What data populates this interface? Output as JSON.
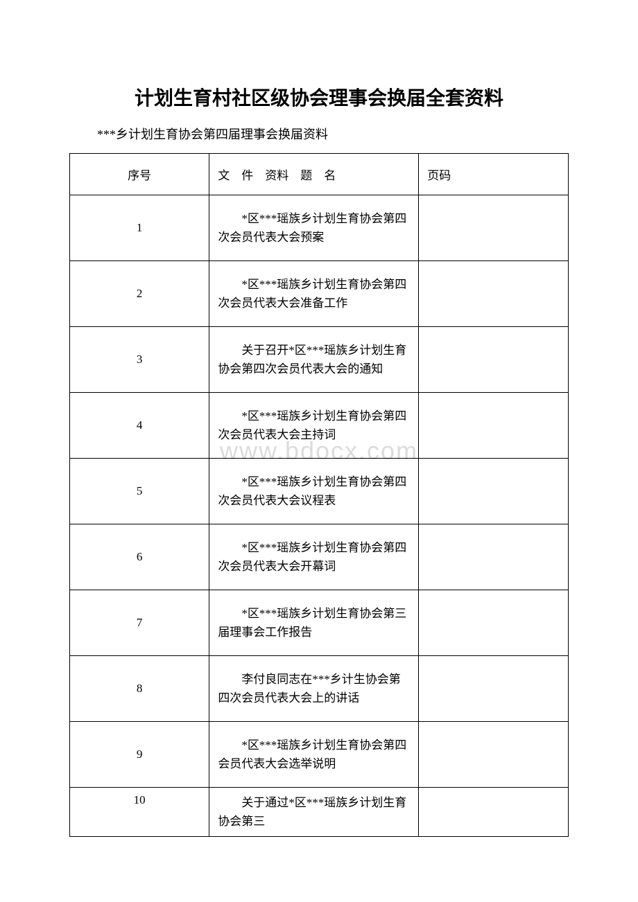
{
  "title": "计划生育村社区级协会理事会换届全套资料",
  "subtitle": "***乡计划生育协会第四届理事会换届资料",
  "watermark": "www.bdocx.com",
  "table": {
    "headers": {
      "num": "序号",
      "doc_title": "文　件　资料　题　名",
      "page": "页码"
    },
    "rows": [
      {
        "num": "1",
        "title": "*区***瑶族乡计划生育协会第四次会员代表大会预案",
        "page": ""
      },
      {
        "num": "2",
        "title": "*区***瑶族乡计划生育协会第四次会员代表大会准备工作",
        "page": ""
      },
      {
        "num": "3",
        "title": "关于召开*区***瑶族乡计划生育协会第四次会员代表大会的通知",
        "page": ""
      },
      {
        "num": "4",
        "title": "*区***瑶族乡计划生育协会第四次会员代表大会主持词",
        "page": ""
      },
      {
        "num": "5",
        "title": "*区***瑶族乡计划生育协会第四次会员代表大会议程表",
        "page": ""
      },
      {
        "num": "6",
        "title": "*区***瑶族乡计划生育协会第四次会员代表大会开幕词",
        "page": ""
      },
      {
        "num": "7",
        "title": "*区***瑶族乡计划生育协会第三届理事会工作报告",
        "page": ""
      },
      {
        "num": "8",
        "title": "李付良同志在***乡计生协会第四次会员代表大会上的讲话",
        "page": ""
      },
      {
        "num": "9",
        "title": "*区***瑶族乡计划生育协会第四会员代表大会选举说明",
        "page": ""
      },
      {
        "num": "10",
        "title": "关于通过*区***瑶族乡计划生育协会第三",
        "page": ""
      }
    ]
  }
}
